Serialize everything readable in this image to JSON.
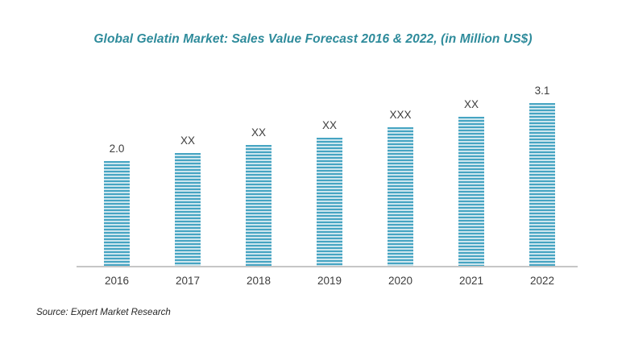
{
  "title": "Global Gelatin Market: Sales Value Forecast 2016 & 2022, (in Million US$)",
  "source": "Source: Expert Market Research",
  "colors": {
    "title_text": "#2e8b9b",
    "bar_stripe_dark": "#46a4c2",
    "bar_stripe_light": "#cde6ee",
    "axis_line": "#c6c6c6",
    "label_text": "#3d3d3d"
  },
  "chart_data": {
    "type": "bar",
    "title": "Global Gelatin Market: Sales Value Forecast 2016 & 2022, (in Million US$)",
    "categories": [
      "2016",
      "2017",
      "2018",
      "2019",
      "2020",
      "2021",
      "2022"
    ],
    "values": [
      2.0,
      2.15,
      2.3,
      2.45,
      2.65,
      2.85,
      3.1
    ],
    "bar_labels": [
      "2.0",
      "XX",
      "XX",
      "XX",
      "XXX",
      "XX",
      "3.1"
    ],
    "xlabel": "",
    "ylabel": "",
    "ylim": [
      0,
      3.5
    ],
    "grid": false,
    "legend": false,
    "y_axis_visible": false,
    "bar_fill_style": "horizontal-stripes",
    "source_note": "Source: Expert Market Research"
  }
}
